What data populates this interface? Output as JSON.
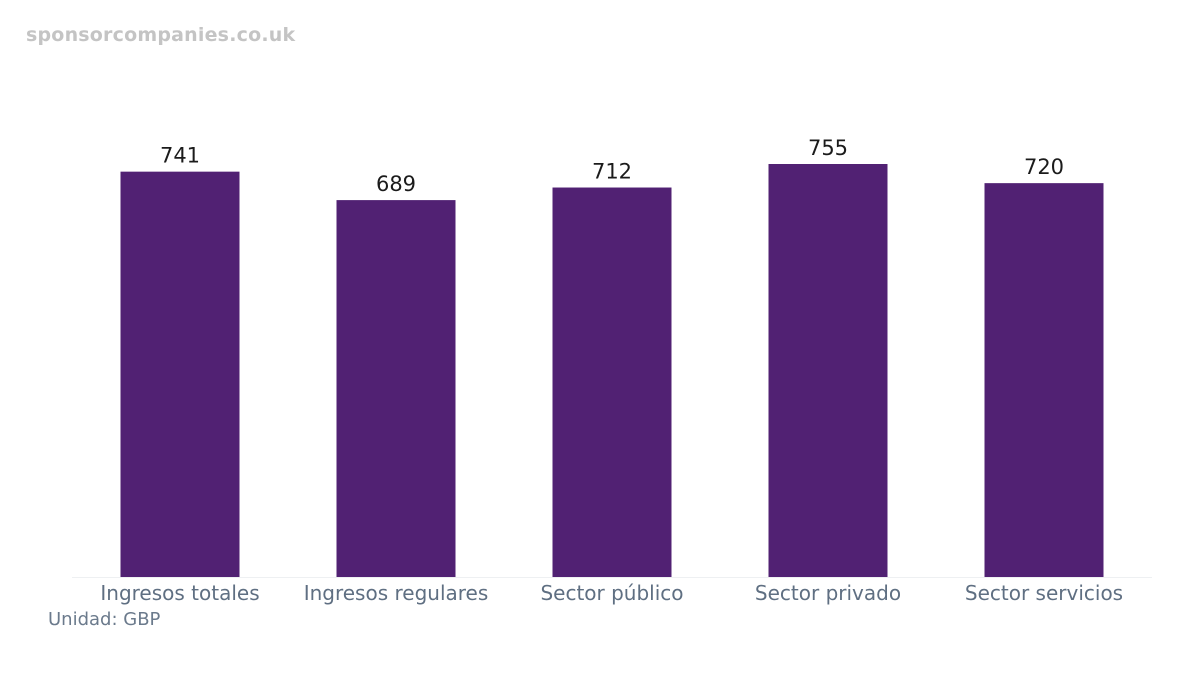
{
  "watermark": "sponsorcompanies.co.uk",
  "unit_label": "Unidad: GBP",
  "colors": {
    "bar": "#512173",
    "baseline": "#eef0f2"
  },
  "chart_data": {
    "type": "bar",
    "categories": [
      "Ingresos totales",
      "Ingresos regulares",
      "Sector público",
      "Sector privado",
      "Sector servicios"
    ],
    "values": [
      741,
      689,
      712,
      755,
      720
    ],
    "title": "",
    "xlabel": "",
    "ylabel": "",
    "ylim": [
      0,
      755
    ],
    "grid": false,
    "legend": "none"
  }
}
